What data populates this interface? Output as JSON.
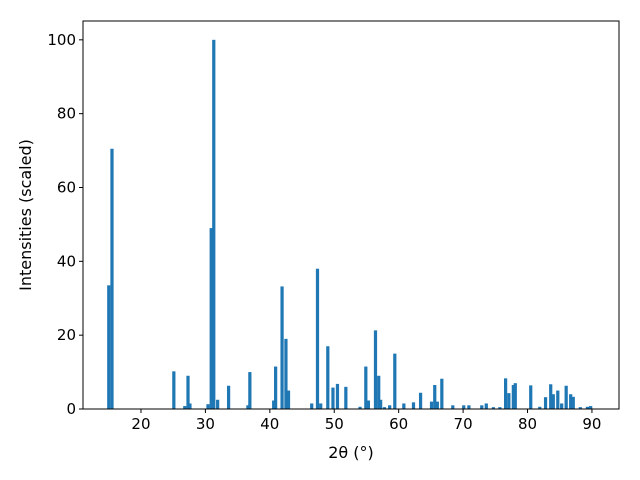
{
  "chart_data": {
    "type": "bar",
    "xlabel": "2θ (°)",
    "ylabel": "Intensities (scaled)",
    "color": "#1f77b4",
    "x": [
      15.0,
      15.5,
      25.1,
      26.8,
      27.3,
      27.6,
      30.4,
      30.9,
      31.3,
      31.9,
      33.6,
      36.6,
      36.9,
      40.6,
      40.9,
      41.9,
      42.5,
      42.9,
      46.5,
      47.4,
      47.9,
      49.0,
      49.8,
      50.5,
      51.8,
      54.0,
      54.9,
      55.3,
      56.4,
      56.9,
      57.2,
      57.8,
      58.6,
      59.4,
      60.8,
      62.3,
      63.4,
      65.1,
      65.6,
      66.0,
      66.7,
      68.4,
      70.1,
      70.9,
      72.9,
      73.6,
      74.7,
      75.7,
      76.6,
      77.1,
      77.8,
      78.1,
      80.5,
      81.9,
      82.8,
      83.6,
      84.0,
      84.7,
      85.3,
      86.0,
      86.7,
      87.1,
      88.2,
      89.3,
      89.8
    ],
    "values": [
      33.5,
      70.5,
      10.2,
      0.8,
      9,
      1.5,
      1.3,
      49,
      100,
      2.5,
      6.3,
      1,
      10,
      2.3,
      11.5,
      33.2,
      19,
      5,
      1.5,
      38,
      1.5,
      17,
      5.8,
      6.8,
      6,
      0.6,
      11.5,
      2.3,
      21.3,
      9,
      2.5,
      0.5,
      1,
      15,
      1.5,
      1.8,
      4.4,
      2,
      6.5,
      2,
      8.2,
      1,
      1,
      1,
      1,
      1.5,
      0.5,
      0.5,
      8.3,
      4.3,
      6.5,
      7,
      6.4,
      0.6,
      3.2,
      6.7,
      4,
      5,
      1.5,
      6.3,
      4,
      3.3,
      0.5,
      0.6,
      0.8
    ],
    "xlim": [
      11,
      94.2
    ],
    "ylim": [
      0,
      105.1
    ],
    "xticks": [
      20,
      30,
      40,
      50,
      60,
      70,
      80,
      90
    ],
    "yticks": [
      0,
      20,
      40,
      60,
      80,
      100
    ]
  }
}
